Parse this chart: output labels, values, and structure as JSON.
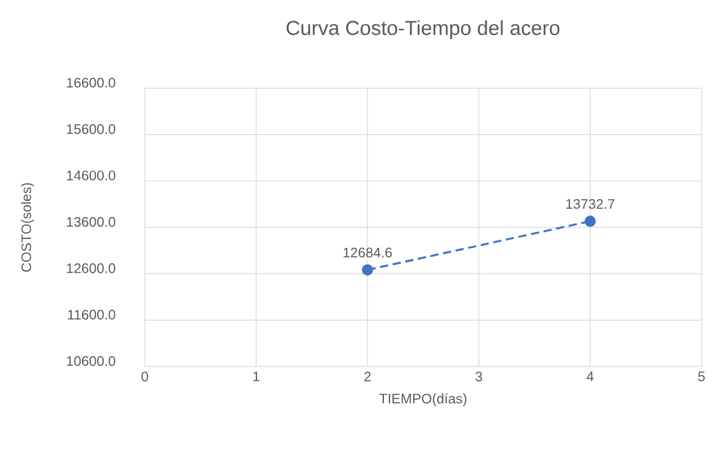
{
  "chart_data": {
    "type": "line",
    "title": "Curva Costo-Tiempo del acero",
    "xlabel": "TIEMPO(días)",
    "ylabel": "COSTO(soles)",
    "x": [
      2,
      4
    ],
    "series": [
      {
        "color": "#4472c4",
        "values": [
          12684.6,
          13732.7
        ]
      }
    ],
    "xlim": [
      0,
      5
    ],
    "xticks": [
      0,
      1,
      2,
      3,
      4,
      5
    ],
    "ylim": [
      10600,
      16600
    ],
    "yticks": [
      {
        "value": 10600,
        "label": "10600.0"
      },
      {
        "value": 11600,
        "label": "11600.0"
      },
      {
        "value": 12600,
        "label": "12600.0"
      },
      {
        "value": 13600,
        "label": "13600.0"
      },
      {
        "value": 14600,
        "label": "14600.0"
      },
      {
        "value": 15600,
        "label": "15600.0"
      },
      {
        "value": 16600,
        "label": "16600.0"
      }
    ],
    "grid": true,
    "marker": "circle",
    "line_style": "dashed",
    "data_labels": true
  }
}
